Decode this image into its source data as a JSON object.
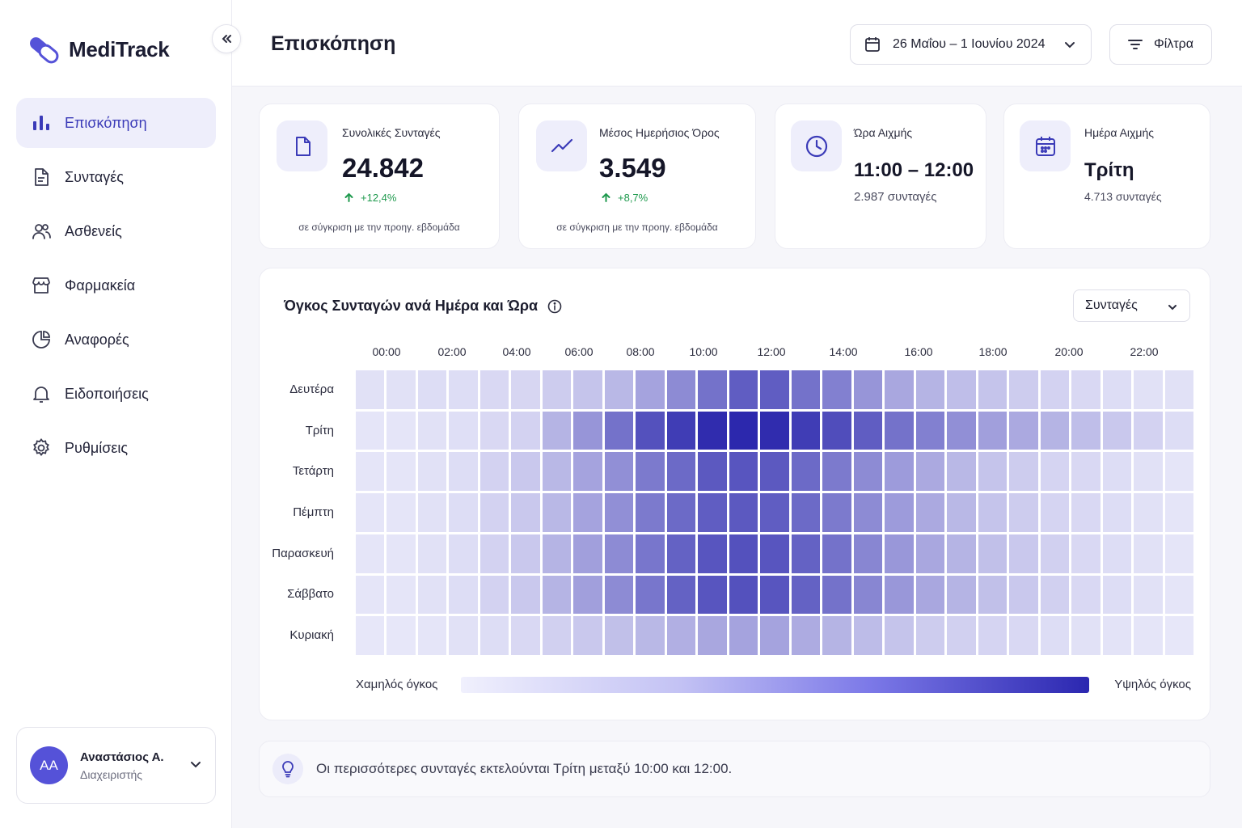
{
  "app": {
    "name": "MediTrack"
  },
  "sidebar": {
    "items": [
      {
        "label": "Επισκόπηση",
        "icon": "bar-chart-icon",
        "active": true
      },
      {
        "label": "Συνταγές",
        "icon": "document-icon"
      },
      {
        "label": "Ασθενείς",
        "icon": "users-icon"
      },
      {
        "label": "Φαρμακεία",
        "icon": "store-icon"
      },
      {
        "label": "Αναφορές",
        "icon": "pie-chart-icon"
      },
      {
        "label": "Ειδοποιήσεις",
        "icon": "bell-icon"
      },
      {
        "label": "Ρυθμίσεις",
        "icon": "gear-icon"
      }
    ],
    "user": {
      "initials": "AA",
      "name": "Αναστάσιος Α.",
      "role": "Διαχειριστής"
    }
  },
  "header": {
    "title": "Επισκόπηση",
    "date_range": "26 Μαΐου – 1 Ιουνίου 2024",
    "filter_label": "Φίλτρα"
  },
  "kpis": {
    "total": {
      "label": "Συνολικές Συνταγές",
      "value": "24.842",
      "change": "+12,4%",
      "note": "σε σύγκριση με την προηγ. εβδομάδα"
    },
    "average": {
      "label": "Μέσος Ημερήσιος Όρος",
      "value": "3.549",
      "change": "+8,7%",
      "note": "σε σύγκριση με την προηγ. εβδομάδα"
    },
    "peak_hour": {
      "label": "Ώρα Αιχμής",
      "value": "11:00 – 12:00",
      "sub": "2.987 συνταγές"
    },
    "peak_day": {
      "label": "Ημέρα Αιχμής",
      "value": "Τρίτη",
      "sub": "4.713 συνταγές"
    }
  },
  "heatmap": {
    "title": "Όγκος Συνταγών ανά Ημέρα και Ώρα",
    "metric": "Συνταγές",
    "legend_low": "Χαμηλός όγκος",
    "legend_high": "Υψηλός όγκος",
    "colors": {
      "low": "#f1f1fd",
      "high": "#2824ab"
    }
  },
  "chart_data": {
    "type": "heatmap",
    "title": "Όγκος Συνταγών ανά Ημέρα και Ώρα",
    "x_tick_labels": [
      "00:00",
      "02:00",
      "04:00",
      "06:00",
      "08:00",
      "10:00",
      "12:00",
      "14:00",
      "16:00",
      "18:00",
      "20:00",
      "22:00"
    ],
    "y": [
      "Δευτέρα",
      "Τρίτη",
      "Τετάρτη",
      "Πέμπτη",
      "Παρασκευή",
      "Σάββατο",
      "Κυριακή"
    ],
    "value_range": [
      0,
      1
    ],
    "values": [
      [
        0.08,
        0.08,
        0.1,
        0.1,
        0.12,
        0.13,
        0.18,
        0.22,
        0.28,
        0.38,
        0.5,
        0.62,
        0.72,
        0.72,
        0.62,
        0.55,
        0.45,
        0.36,
        0.3,
        0.25,
        0.22,
        0.18,
        0.15,
        0.12,
        0.1,
        0.08,
        0.08
      ],
      [
        0.06,
        0.06,
        0.08,
        0.09,
        0.12,
        0.15,
        0.3,
        0.45,
        0.62,
        0.78,
        0.88,
        0.96,
        0.98,
        0.96,
        0.88,
        0.8,
        0.72,
        0.62,
        0.55,
        0.48,
        0.4,
        0.35,
        0.3,
        0.25,
        0.2,
        0.15,
        0.1
      ],
      [
        0.06,
        0.06,
        0.08,
        0.1,
        0.15,
        0.2,
        0.28,
        0.38,
        0.48,
        0.58,
        0.66,
        0.74,
        0.76,
        0.74,
        0.66,
        0.58,
        0.5,
        0.42,
        0.35,
        0.28,
        0.22,
        0.18,
        0.14,
        0.12,
        0.1,
        0.08,
        0.06
      ],
      [
        0.06,
        0.06,
        0.08,
        0.1,
        0.15,
        0.2,
        0.28,
        0.38,
        0.48,
        0.58,
        0.66,
        0.72,
        0.74,
        0.72,
        0.66,
        0.58,
        0.5,
        0.42,
        0.35,
        0.28,
        0.22,
        0.18,
        0.14,
        0.12,
        0.1,
        0.08,
        0.06
      ],
      [
        0.06,
        0.06,
        0.08,
        0.1,
        0.15,
        0.2,
        0.3,
        0.4,
        0.5,
        0.6,
        0.7,
        0.76,
        0.78,
        0.76,
        0.7,
        0.62,
        0.52,
        0.44,
        0.36,
        0.3,
        0.24,
        0.2,
        0.16,
        0.12,
        0.1,
        0.08,
        0.06
      ],
      [
        0.06,
        0.06,
        0.08,
        0.1,
        0.15,
        0.2,
        0.3,
        0.4,
        0.5,
        0.6,
        0.7,
        0.76,
        0.78,
        0.76,
        0.7,
        0.62,
        0.52,
        0.44,
        0.36,
        0.3,
        0.24,
        0.2,
        0.16,
        0.12,
        0.1,
        0.08,
        0.06
      ],
      [
        0.05,
        0.05,
        0.06,
        0.08,
        0.1,
        0.12,
        0.16,
        0.2,
        0.24,
        0.28,
        0.32,
        0.36,
        0.38,
        0.38,
        0.34,
        0.3,
        0.26,
        0.22,
        0.18,
        0.16,
        0.14,
        0.12,
        0.1,
        0.08,
        0.07,
        0.06,
        0.05
      ]
    ]
  },
  "insight": {
    "text": "Οι περισσότερες συνταγές εκτελούνται Τρίτη μεταξύ 10:00 και 12:00.",
    "icon": "lightbulb-icon"
  }
}
